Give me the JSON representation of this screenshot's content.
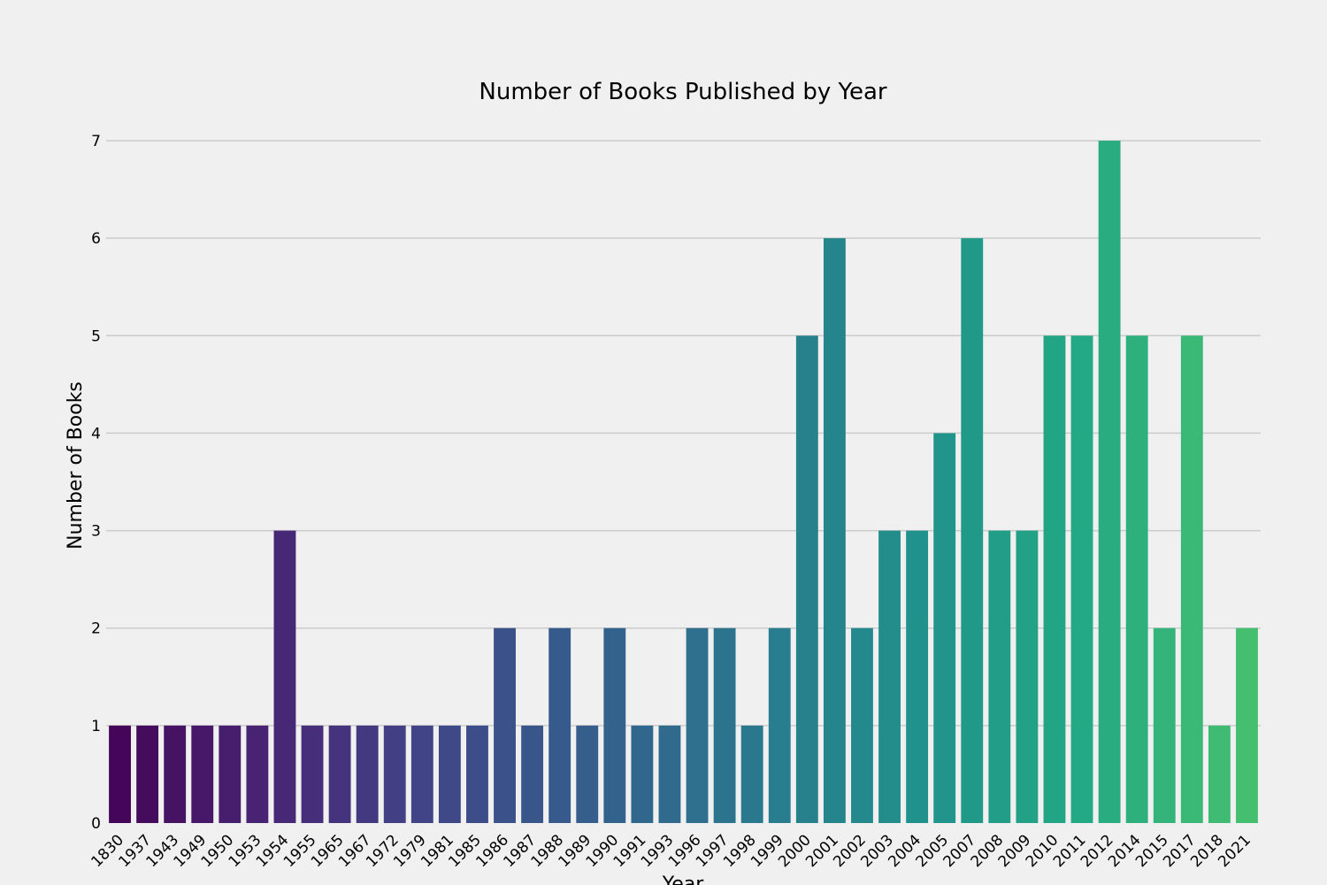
{
  "chart_data": {
    "type": "bar",
    "title": "Number of Books Published by Year",
    "xlabel": "Year",
    "ylabel": "Number of Books",
    "categories": [
      "1830",
      "1937",
      "1943",
      "1949",
      "1950",
      "1953",
      "1954",
      "1955",
      "1965",
      "1967",
      "1972",
      "1979",
      "1981",
      "1985",
      "1986",
      "1987",
      "1988",
      "1989",
      "1990",
      "1991",
      "1993",
      "1996",
      "1997",
      "1998",
      "1999",
      "2000",
      "2001",
      "2002",
      "2003",
      "2004",
      "2005",
      "2007",
      "2008",
      "2009",
      "2010",
      "2011",
      "2012",
      "2014",
      "2015",
      "2017",
      "2018",
      "2021"
    ],
    "values": [
      1,
      1,
      1,
      1,
      1,
      1,
      3,
      1,
      1,
      1,
      1,
      1,
      1,
      1,
      2,
      1,
      2,
      1,
      2,
      1,
      1,
      2,
      2,
      1,
      2,
      5,
      6,
      2,
      3,
      3,
      4,
      6,
      3,
      3,
      5,
      5,
      7,
      5,
      2,
      5,
      1,
      2
    ],
    "ylim": [
      0,
      7
    ],
    "yticks": [
      0,
      1,
      2,
      3,
      4,
      5,
      6,
      7
    ],
    "grid": "horizontal",
    "palette": "viridis",
    "background": "#f0f0f0"
  }
}
